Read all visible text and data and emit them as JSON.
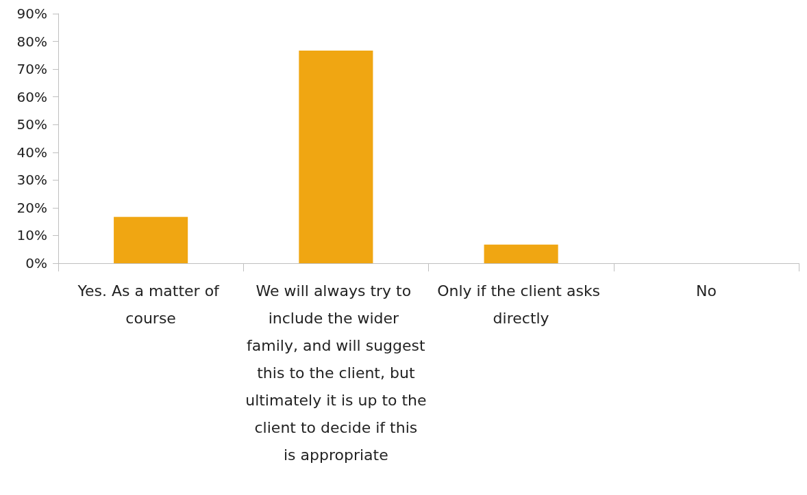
{
  "chart_data": {
    "type": "bar",
    "categories": [
      "Yes. As a matter of course",
      "We will always try to include the wider family, and will suggest this to the client, but ultimately it is up to the client to decide if this is appropriate",
      "Only if the client asks directly",
      "No"
    ],
    "values": [
      16.7,
      76.7,
      6.7,
      0
    ],
    "color": "#f0a612",
    "ylim": [
      0,
      90
    ],
    "yticks": [
      {
        "value": 0,
        "label": "0%"
      },
      {
        "value": 10,
        "label": "10%"
      },
      {
        "value": 20,
        "label": "20%"
      },
      {
        "value": 30,
        "label": "30%"
      },
      {
        "value": 40,
        "label": "40%"
      },
      {
        "value": 50,
        "label": "50%"
      },
      {
        "value": 60,
        "label": "60%"
      },
      {
        "value": 70,
        "label": "70%"
      },
      {
        "value": 80,
        "label": "80%"
      },
      {
        "value": 90,
        "label": "90%"
      }
    ],
    "grid": false
  }
}
